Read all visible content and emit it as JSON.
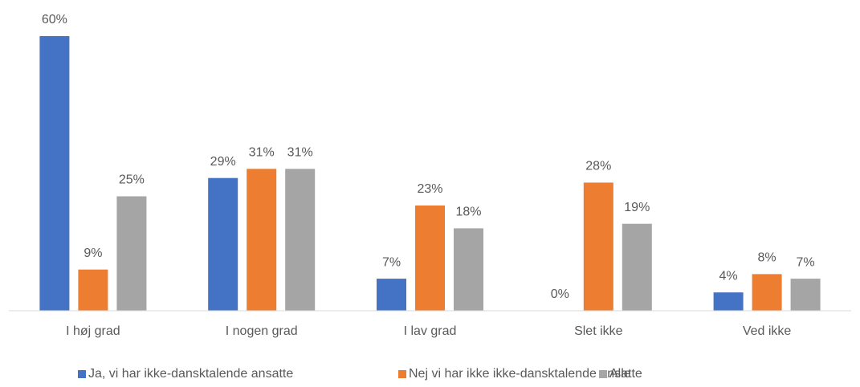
{
  "chart_data": {
    "type": "bar",
    "categories": [
      "I høj grad",
      "I nogen grad",
      "I lav grad",
      "Slet ikke",
      "Ved ikke"
    ],
    "series": [
      {
        "name": "Ja, vi har ikke-dansktalende ansatte",
        "color": "#4472c4",
        "values": [
          60,
          29,
          7,
          0,
          4
        ],
        "value_labels": [
          "60%",
          "29%",
          "7%",
          "0%",
          "4%"
        ]
      },
      {
        "name": "Nej vi har ikke ikke-dansktalende ansatte",
        "color": "#ed7d31",
        "values": [
          9,
          31,
          23,
          28,
          8
        ],
        "value_labels": [
          "9%",
          "31%",
          "23%",
          "28%",
          "8%"
        ]
      },
      {
        "name": "Alle",
        "color": "#a5a5a5",
        "values": [
          25,
          31,
          18,
          19,
          7
        ],
        "value_labels": [
          "25%",
          "31%",
          "18%",
          "19%",
          "7%"
        ]
      }
    ],
    "legend": "bottom"
  }
}
